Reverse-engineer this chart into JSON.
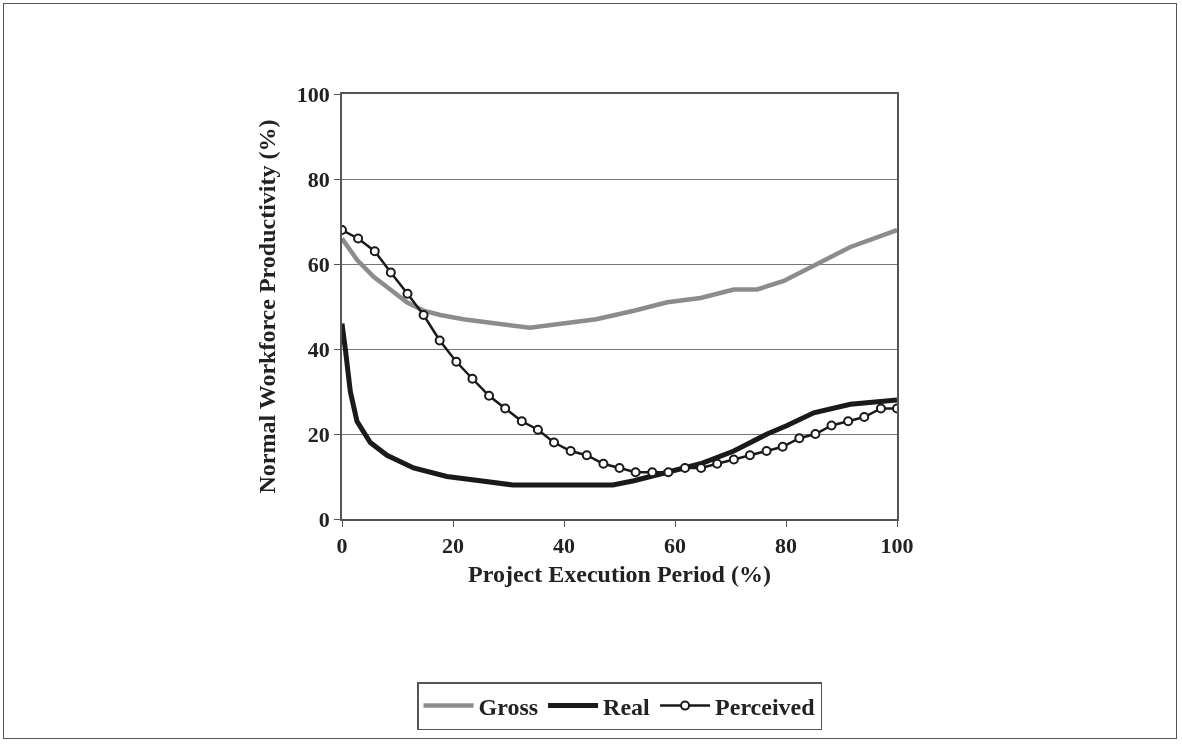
{
  "chart_data": {
    "type": "line",
    "xlabel": "Project Execution Period (%)",
    "ylabel": "Normal Workforce Productivity (%)",
    "xlim": [
      0,
      100
    ],
    "xticks": [
      0,
      20,
      40,
      60,
      80,
      100
    ],
    "ylim": [
      0,
      100
    ],
    "yticks": [
      0,
      20,
      40,
      60,
      80,
      100
    ],
    "grid": "y",
    "legend": "bottom",
    "series": [
      {
        "name": "Gross",
        "color": "#8c8c8c",
        "x": [
          0,
          2.7,
          5.7,
          8.7,
          11.7,
          14.7,
          17.7,
          21.9,
          27.8,
          33.8,
          39.8,
          45.8,
          52.6,
          58.6,
          64.6,
          70.6,
          74.8,
          79.6,
          85.6,
          91.6,
          100
        ],
        "values": [
          66,
          61,
          57,
          54,
          51,
          49,
          48,
          47,
          46,
          45,
          46,
          47,
          49,
          51,
          52,
          54,
          54,
          56,
          60,
          64,
          68
        ]
      },
      {
        "name": "Real",
        "color": "#1a1a1a",
        "x": [
          0,
          0.6,
          1.5,
          2.7,
          5.1,
          8.1,
          12.9,
          18.9,
          24.9,
          30.8,
          36.8,
          39.8,
          45.8,
          48.8,
          52.6,
          58.6,
          64.6,
          70.6,
          76.6,
          80.2,
          85,
          91.6,
          100
        ],
        "values": [
          46,
          40,
          30,
          23,
          18,
          15,
          12,
          10,
          9,
          8,
          8,
          8,
          8,
          8,
          9,
          11,
          13,
          16,
          20,
          22,
          25,
          27,
          28
        ]
      },
      {
        "name": "Perceived",
        "color": "#1a1a1a",
        "marker": "circle",
        "x": [
          0,
          2.9,
          5.9,
          8.8,
          11.8,
          14.7,
          17.6,
          20.6,
          23.5,
          26.5,
          29.4,
          32.4,
          35.3,
          38.2,
          41.2,
          44.1,
          47.1,
          50,
          52.9,
          55.9,
          58.8,
          61.8,
          64.7,
          67.6,
          70.6,
          73.5,
          76.5,
          79.4,
          82.4,
          85.3,
          88.2,
          91.2,
          94.1,
          97.1,
          100
        ],
        "values": [
          68,
          66,
          63,
          58,
          53,
          48,
          42,
          37,
          33,
          29,
          26,
          23,
          21,
          18,
          16,
          15,
          13,
          12,
          11,
          11,
          11,
          12,
          12,
          13,
          14,
          15,
          16,
          17,
          19,
          20,
          22,
          23,
          24,
          26,
          26
        ]
      }
    ]
  }
}
